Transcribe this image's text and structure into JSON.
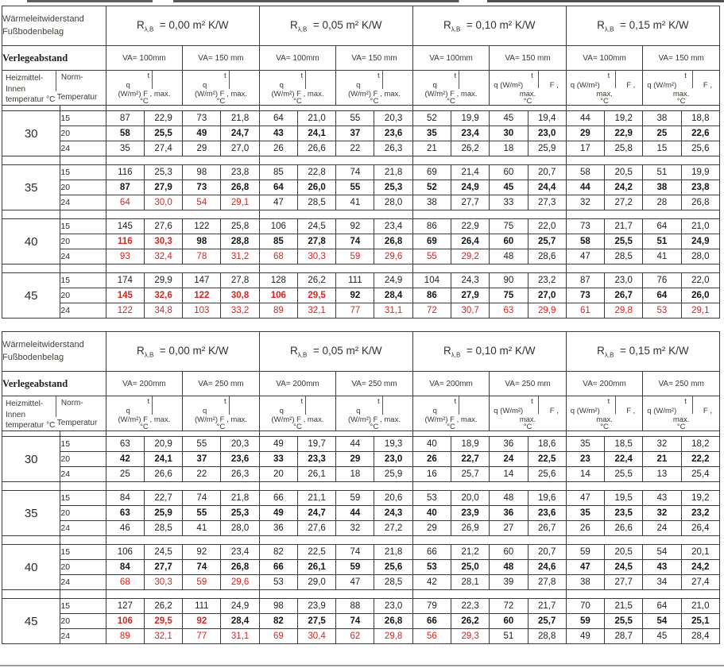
{
  "meta": {
    "colors": {
      "red": "#dc241b",
      "text": "#1e1e1e",
      "border": "#3a3a3a"
    }
  },
  "shared": {
    "corner_title_lines": [
      "Wärmeleitwiderstand",
      "Fußbodenbelag"
    ],
    "verlegeabstand": "Verlegeabstand",
    "row_header": {
      "left_lines": [
        "Heizmittel-",
        "Innen",
        "temperatur °C"
      ],
      "norm_top": "Norm-",
      "norm_bottom": "Temperatur"
    },
    "qt": {
      "t": "t",
      "q": "q",
      "q_unit": "(W/m²)",
      "f_max": "F , max.",
      "f": "F ,",
      "max": "max.",
      "deg": "°C"
    },
    "r_prefix": "R",
    "r_sub": "λ,B"
  },
  "tables": [
    {
      "r_values": [
        "= 0,00 m² K/W",
        "= 0,05 m² K/W",
        "= 0,10 m² K/W",
        "= 0,15 m² K/W"
      ],
      "va_labels": [
        "VA= 100mm",
        "VA= 150 mm",
        "VA= 100mm",
        "VA= 150 mm",
        "VA= 100mm",
        "VA= 150 mm",
        "VA= 100mm",
        "VA= 150 mm"
      ],
      "qt_styles": [
        "A",
        "A",
        "A",
        "A",
        "A",
        "B",
        "B",
        "B"
      ],
      "blocks": [
        {
          "temp": "30",
          "rows": [
            {
              "norm": "15",
              "bold": false,
              "red": [],
              "values": [
                "87",
                "22,9",
                "73",
                "21,8",
                "64",
                "21,0",
                "55",
                "20,3",
                "52",
                "19,9",
                "45",
                "19,4",
                "44",
                "19,2",
                "38",
                "18,8"
              ]
            },
            {
              "norm": "20",
              "bold": true,
              "red": [],
              "values": [
                "58",
                "25,5",
                "49",
                "24,7",
                "43",
                "24,1",
                "37",
                "23,6",
                "35",
                "23,4",
                "30",
                "23,0",
                "29",
                "22,9",
                "25",
                "22,6"
              ]
            },
            {
              "norm": "24",
              "bold": false,
              "red": [],
              "values": [
                "35",
                "27,4",
                "29",
                "27,0",
                "26",
                "26,6",
                "22",
                "26,3",
                "21",
                "26,2",
                "18",
                "25,9",
                "17",
                "25,8",
                "15",
                "25,6"
              ]
            }
          ]
        },
        {
          "temp": "35",
          "rows": [
            {
              "norm": "15",
              "bold": false,
              "red": [],
              "values": [
                "116",
                "25,3",
                "98",
                "23,8",
                "85",
                "22,8",
                "74",
                "21,8",
                "69",
                "21,4",
                "60",
                "20,7",
                "58",
                "20,5",
                "51",
                "19,9"
              ]
            },
            {
              "norm": "20",
              "bold": true,
              "red": [],
              "values": [
                "87",
                "27,9",
                "73",
                "26,8",
                "64",
                "26,0",
                "55",
                "25,3",
                "52",
                "24,9",
                "45",
                "24,4",
                "44",
                "24,2",
                "38",
                "23,8"
              ]
            },
            {
              "norm": "24",
              "bold": false,
              "red": [
                0,
                1,
                2,
                3
              ],
              "values": [
                "64",
                "30,0",
                "54",
                "29,1",
                "47",
                "28,5",
                "41",
                "28,0",
                "38",
                "27,7",
                "33",
                "27,3",
                "32",
                "27,2",
                "28",
                "26,8"
              ]
            }
          ]
        },
        {
          "temp": "40",
          "rows": [
            {
              "norm": "15",
              "bold": false,
              "red": [],
              "values": [
                "145",
                "27,6",
                "122",
                "25,8",
                "106",
                "24,5",
                "92",
                "23,4",
                "86",
                "22,9",
                "75",
                "22,0",
                "73",
                "21,7",
                "64",
                "21,0"
              ]
            },
            {
              "norm": "20",
              "bold": true,
              "red": [
                0,
                1
              ],
              "values": [
                "116",
                "30,3",
                "98",
                "28,8",
                "85",
                "27,8",
                "74",
                "26,8",
                "69",
                "26,4",
                "60",
                "25,7",
                "58",
                "25,5",
                "51",
                "24,9"
              ]
            },
            {
              "norm": "24",
              "bold": false,
              "red": [
                0,
                1,
                2,
                3,
                4,
                5,
                6,
                7,
                8,
                9
              ],
              "values": [
                "93",
                "32,4",
                "78",
                "31,2",
                "68",
                "30,3",
                "59",
                "29,6",
                "55",
                "29,2",
                "48",
                "28,6",
                "47",
                "28,5",
                "41",
                "28,0"
              ]
            }
          ]
        },
        {
          "temp": "45",
          "rows": [
            {
              "norm": "15",
              "bold": false,
              "red": [],
              "values": [
                "174",
                "29,9",
                "147",
                "27,8",
                "128",
                "26,2",
                "111",
                "24,9",
                "104",
                "24,3",
                "90",
                "23,2",
                "87",
                "23,0",
                "76",
                "22,0"
              ]
            },
            {
              "norm": "20",
              "bold": true,
              "red": [
                0,
                1,
                2,
                3,
                4,
                5
              ],
              "values": [
                "145",
                "32,6",
                "122",
                "30,8",
                "106",
                "29,5",
                "92",
                "28,4",
                "86",
                "27,9",
                "75",
                "27,0",
                "73",
                "26,7",
                "64",
                "26,0"
              ]
            },
            {
              "norm": "24",
              "bold": false,
              "red": [
                0,
                1,
                2,
                3,
                4,
                5,
                6,
                7,
                8,
                9,
                10,
                11,
                12,
                13,
                14,
                15
              ],
              "values": [
                "122",
                "34,8",
                "103",
                "33,2",
                "89",
                "32,1",
                "77",
                "31,1",
                "72",
                "30,7",
                "63",
                "29,9",
                "61",
                "29,8",
                "53",
                "29,1"
              ]
            }
          ]
        }
      ]
    },
    {
      "r_values": [
        "= 0,00 m² K/W",
        "= 0,05 m² K/W",
        "= 0,10 m² K/W",
        "= 0,15 m² K/W"
      ],
      "va_labels": [
        "VA= 200mm",
        "VA= 250 mm",
        "VA= 200mm",
        "VA= 250 mm",
        "VA= 200mm",
        "VA= 250 mm",
        "VA= 200mm",
        "VA= 250 mm"
      ],
      "qt_styles": [
        "A",
        "A",
        "A",
        "A",
        "A",
        "B",
        "B",
        "B"
      ],
      "blocks": [
        {
          "temp": "30",
          "rows": [
            {
              "norm": "15",
              "bold": false,
              "red": [],
              "values": [
                "63",
                "20,9",
                "55",
                "20,3",
                "49",
                "19,7",
                "44",
                "19,3",
                "40",
                "18,9",
                "36",
                "18,6",
                "35",
                "18,5",
                "32",
                "18,2"
              ]
            },
            {
              "norm": "20",
              "bold": true,
              "red": [],
              "values": [
                "42",
                "24,1",
                "37",
                "23,6",
                "33",
                "23,3",
                "29",
                "23,0",
                "26",
                "22,7",
                "24",
                "22,5",
                "23",
                "22,4",
                "21",
                "22,2"
              ]
            },
            {
              "norm": "24",
              "bold": false,
              "red": [],
              "values": [
                "25",
                "26,6",
                "22",
                "26,3",
                "20",
                "26,1",
                "18",
                "25,9",
                "16",
                "25,7",
                "14",
                "25,6",
                "14",
                "25,5",
                "13",
                "25,4"
              ]
            }
          ]
        },
        {
          "temp": "35",
          "rows": [
            {
              "norm": "15",
              "bold": false,
              "red": [],
              "values": [
                "84",
                "22,7",
                "74",
                "21,8",
                "66",
                "21,1",
                "59",
                "20,6",
                "53",
                "20,0",
                "48",
                "19,6",
                "47",
                "19,5",
                "43",
                "19,2"
              ]
            },
            {
              "norm": "20",
              "bold": true,
              "red": [],
              "values": [
                "63",
                "25,9",
                "55",
                "25,3",
                "49",
                "24,7",
                "44",
                "24,3",
                "40",
                "23,9",
                "36",
                "23,6",
                "35",
                "23,5",
                "32",
                "23,2"
              ]
            },
            {
              "norm": "24",
              "bold": false,
              "red": [],
              "values": [
                "46",
                "28,5",
                "41",
                "28,0",
                "36",
                "27,6",
                "32",
                "27,2",
                "29",
                "26,9",
                "27",
                "26,7",
                "26",
                "26,6",
                "24",
                "26,4"
              ]
            }
          ]
        },
        {
          "temp": "40",
          "rows": [
            {
              "norm": "15",
              "bold": false,
              "red": [],
              "values": [
                "106",
                "24,5",
                "92",
                "23,4",
                "82",
                "22,5",
                "74",
                "21,8",
                "66",
                "21,2",
                "60",
                "20,7",
                "59",
                "20,5",
                "54",
                "20,1"
              ]
            },
            {
              "norm": "20",
              "bold": true,
              "red": [],
              "values": [
                "84",
                "27,7",
                "74",
                "26,8",
                "66",
                "26,1",
                "59",
                "25,6",
                "53",
                "25,0",
                "48",
                "24,6",
                "47",
                "24,5",
                "43",
                "24,2"
              ]
            },
            {
              "norm": "24",
              "bold": false,
              "red": [
                0,
                1,
                2,
                3
              ],
              "values": [
                "68",
                "30,3",
                "59",
                "29,6",
                "53",
                "29,0",
                "47",
                "28,5",
                "42",
                "28,1",
                "39",
                "27,8",
                "38",
                "27,7",
                "34",
                "27,4"
              ]
            }
          ]
        },
        {
          "temp": "45",
          "rows": [
            {
              "norm": "15",
              "bold": false,
              "red": [],
              "values": [
                "127",
                "26,2",
                "111",
                "24,9",
                "98",
                "23,9",
                "88",
                "23,0",
                "79",
                "22,3",
                "72",
                "21,7",
                "70",
                "21,5",
                "64",
                "21,0"
              ]
            },
            {
              "norm": "20",
              "bold": true,
              "red": [
                0,
                1,
                2
              ],
              "values": [
                "106",
                "29,5",
                "92",
                "28,4",
                "82",
                "27,5",
                "74",
                "26,8",
                "66",
                "26,2",
                "60",
                "25,7",
                "59",
                "25,5",
                "54",
                "25,1"
              ]
            },
            {
              "norm": "24",
              "bold": false,
              "red": [
                0,
                1,
                2,
                3,
                4,
                5,
                6,
                7,
                8,
                9
              ],
              "values": [
                "89",
                "32,1",
                "77",
                "31,1",
                "69",
                "30,4",
                "62",
                "29,8",
                "56",
                "29,3",
                "51",
                "28,8",
                "49",
                "28,7",
                "45",
                "28,4"
              ]
            }
          ]
        }
      ]
    }
  ]
}
